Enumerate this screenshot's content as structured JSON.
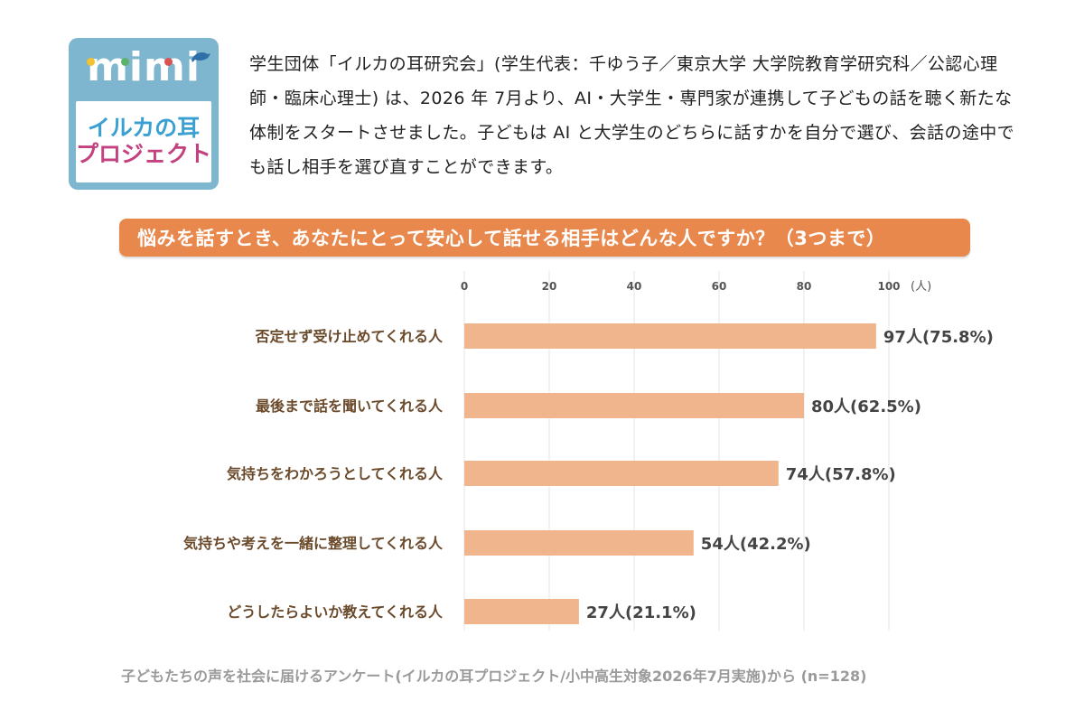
{
  "logo": {
    "word": "mimi",
    "line1": "イルカの耳",
    "line2": "プロジェクト"
  },
  "intro_text": "学生団体「イルカの耳研究会」(学生代表：千ゆう子／東京大学 大学院教育学研究科／公認心理師・臨床心理士) は、2026 年 7月より、AI・大学生・専門家が連携して子どもの話を聴く新たな体制をスタートさせました。子どもは AI と大学生のどちらに話すかを自分で選び、会話の途中でも話し相手を選び直すことができます。",
  "colors": {
    "title_bar": "#e8884c",
    "bar": "#f0b58d",
    "category_text": "#6b4a2b",
    "logo_bg": "#7fb6cf"
  },
  "chart_data": {
    "type": "bar",
    "orientation": "horizontal",
    "title": "悩みを話すとき、あなたにとって安心して話せる相手はどんな人ですか？（3つまで）",
    "x_unit": "(人)",
    "x_ticks": [
      "0",
      "20",
      "40",
      "60",
      "80",
      "100"
    ],
    "xlim": [
      0,
      100
    ],
    "grid": true,
    "categories": [
      "否定せず受け止めてくれる人",
      "最後まで話を聞いてくれる人",
      "気持ちをわかろうとしてくれる人",
      "気持ちや考えを一緒に整理してくれる人",
      "どうしたらよいか教えてくれる人"
    ],
    "values": [
      97,
      80,
      74,
      54,
      27
    ],
    "data_labels": [
      "97人(75.8%)",
      "80人(62.5%)",
      "74人(57.8%)",
      "54人(42.2%)",
      "27人(21.1%)"
    ]
  },
  "footer": "子どもたちの声を社会に届けるアンケート(イルカの耳プロジェクト/小中高生対象2026年7月実施)から (n=128)"
}
